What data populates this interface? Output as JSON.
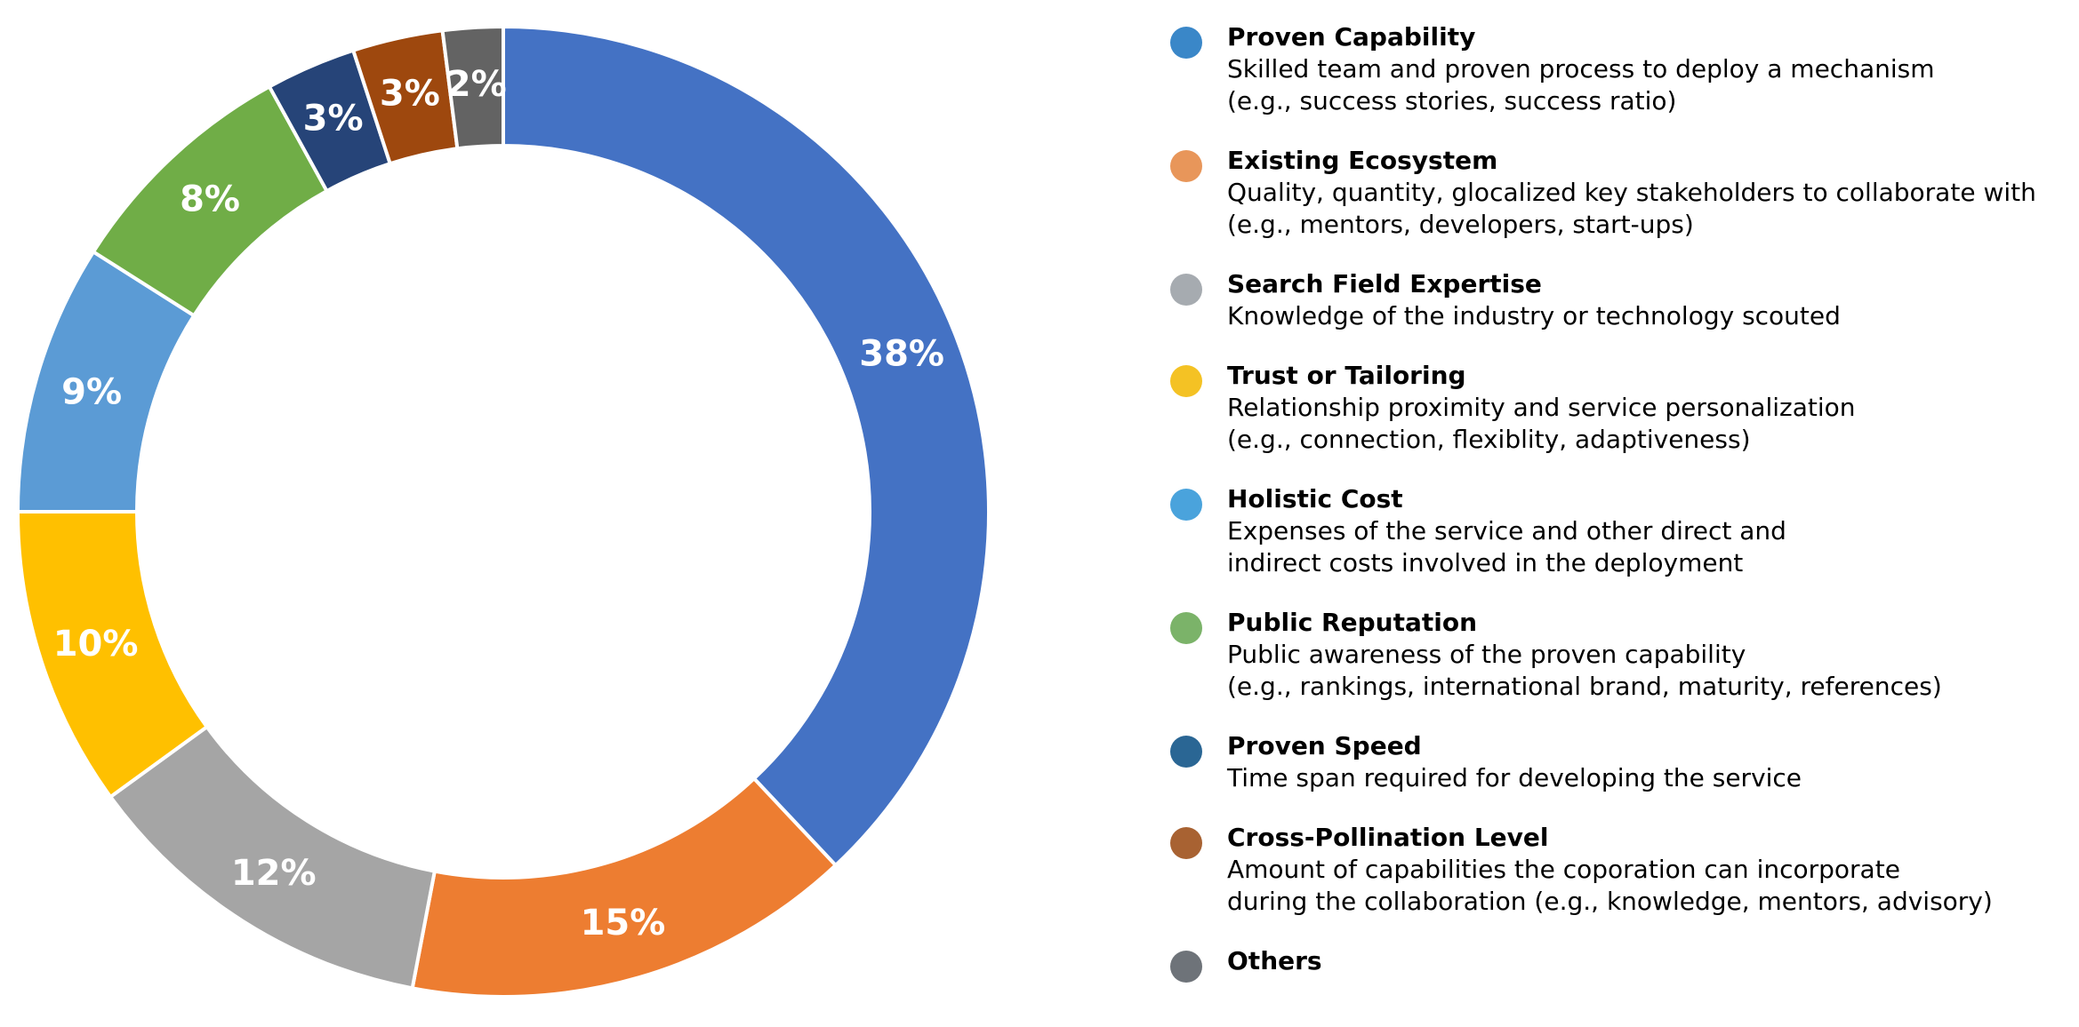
{
  "chart_data": {
    "type": "donut",
    "slices": [
      {
        "label": "Proven Capability",
        "value": 38,
        "value_label": "38%",
        "color": "#4472C4"
      },
      {
        "label": "Existing Ecosystem",
        "value": 15,
        "value_label": "15%",
        "color": "#ED7D31"
      },
      {
        "label": "Search Field Expertise",
        "value": 12,
        "value_label": "12%",
        "color": "#A5A5A5"
      },
      {
        "label": "Trust or Tailoring",
        "value": 10,
        "value_label": "10%",
        "color": "#FFC000"
      },
      {
        "label": "Holistic Cost",
        "value": 9,
        "value_label": "9%",
        "color": "#5B9BD5"
      },
      {
        "label": "Public Reputation",
        "value": 8,
        "value_label": "8%",
        "color": "#70AD47"
      },
      {
        "label": "Proven Speed",
        "value": 3,
        "value_label": "3%",
        "color": "#264478"
      },
      {
        "label": "Cross-Pollination Level",
        "value": 3,
        "value_label": "3%",
        "color": "#9E480E"
      },
      {
        "label": "Others",
        "value": 2,
        "value_label": "2%",
        "color": "#636363"
      }
    ],
    "legend_position": "right"
  },
  "legend": [
    {
      "title": "Proven Capability",
      "desc": "Skilled team and proven process to deploy a mechanism\n(e.g., success stories, success ratio)",
      "dot_color": "#3A87C8"
    },
    {
      "title": "Existing Ecosystem",
      "desc": "Quality, quantity, glocalized key stakeholders to collaborate with\n(e.g., mentors, developers, start-ups)",
      "dot_color": "#E8965A"
    },
    {
      "title": "Search Field Expertise",
      "desc": "Knowledge of the industry or technology scouted",
      "dot_color": "#A6ABB0"
    },
    {
      "title": "Trust or Tailoring",
      "desc": "Relationship proximity and service personalization\n(e.g., connection, flexiblity, adaptiveness)",
      "dot_color": "#F4C224"
    },
    {
      "title": "Holistic Cost",
      "desc": "Expenses of the service and other direct and\nindirect costs involved in the deployment",
      "dot_color": "#4AA3DC"
    },
    {
      "title": "Public Reputation",
      "desc": "Public awareness of the proven capability\n(e.g., rankings, international brand, maturity, references)",
      "dot_color": "#7BB369"
    },
    {
      "title": "Proven Speed",
      "desc": "Time span required for developing the service",
      "dot_color": "#2A6694"
    },
    {
      "title": "Cross-Pollination Level",
      "desc": "Amount of capabilities the coporation can incorporate\nduring the collaboration (e.g., knowledge, mentors, advisory)",
      "dot_color": "#A86232"
    },
    {
      "title": "Others",
      "desc": "",
      "dot_color": "#6E7379"
    }
  ]
}
